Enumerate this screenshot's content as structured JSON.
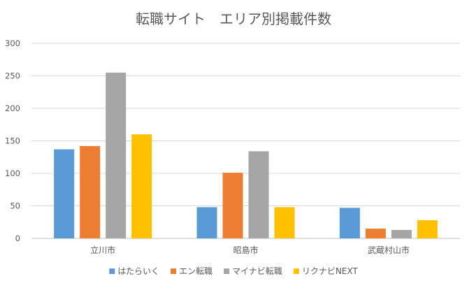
{
  "chart_data": {
    "type": "bar",
    "title": "転職サイト　エリア別掲載件数",
    "xlabel": "",
    "ylabel": "",
    "ylim": [
      0,
      300
    ],
    "yticks": [
      0,
      50,
      100,
      150,
      200,
      250,
      300
    ],
    "grid": true,
    "legend_position": "bottom",
    "categories": [
      "立川市",
      "昭島市",
      "武蔵村山市"
    ],
    "series": [
      {
        "name": "はたらいく",
        "color": "#5b9bd5",
        "values": [
          137,
          48,
          47
        ]
      },
      {
        "name": "エン転職",
        "color": "#ed7d31",
        "values": [
          142,
          101,
          15
        ]
      },
      {
        "name": "マイナビ転職",
        "color": "#a5a5a5",
        "values": [
          255,
          134,
          13
        ]
      },
      {
        "name": "リクナビNEXT",
        "color": "#ffc000",
        "values": [
          160,
          48,
          28
        ]
      }
    ]
  }
}
